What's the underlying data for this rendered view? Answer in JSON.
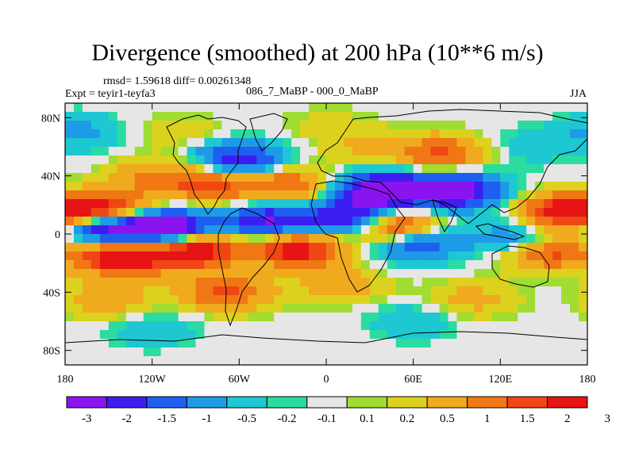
{
  "chart_data": {
    "type": "heatmap",
    "title": "Divergence (smoothed) at 200 hPa (10**6 m/s)",
    "stats": "rmsd= 1.59618 diff= 0.00261348",
    "experiment": "Expt = teyir1-teyfa3",
    "comparison": "086_7_MaBP - 000_0_MaBP",
    "season": "JJA",
    "x_ticks": [
      "180",
      "120W",
      "60W",
      "0",
      "60E",
      "120E",
      "180"
    ],
    "x_tick_values": [
      -180,
      -120,
      -60,
      0,
      60,
      120,
      180
    ],
    "y_ticks": [
      "80N",
      "40N",
      "0",
      "40S",
      "80S"
    ],
    "y_tick_values": [
      80,
      40,
      0,
      -40,
      -80
    ],
    "xlim": [
      -180,
      180
    ],
    "ylim": [
      -90,
      90
    ],
    "colorbar_labels": [
      "-3",
      "-2",
      "-1.5",
      "-1",
      "-0.5",
      "-0.2",
      "-0.1",
      "0.1",
      "0.2",
      "0.5",
      "1",
      "1.5",
      "2",
      "3"
    ],
    "colorbar_colors": [
      "#8a14f0",
      "#3c1ef0",
      "#1e5ff0",
      "#1e9be6",
      "#1ec8d2",
      "#2adca0",
      "#e6e6e6",
      "#a0dc32",
      "#dcd21e",
      "#f0aa1e",
      "#f07814",
      "#f04614",
      "#e61414"
    ],
    "levels": [
      -3,
      -2,
      -1.5,
      -1,
      -0.5,
      -0.2,
      -0.1,
      0.1,
      0.2,
      0.5,
      1,
      1.5,
      2,
      3
    ],
    "field_features": [
      {
        "lon": -150,
        "lat": 5,
        "value": -3.5
      },
      {
        "lon": -110,
        "lat": 4,
        "value": -3.2
      },
      {
        "lon": -40,
        "lat": 8,
        "value": -2.2
      },
      {
        "lon": 20,
        "lat": 10,
        "value": -2.6
      },
      {
        "lon": 40,
        "lat": 30,
        "value": -2.8
      },
      {
        "lon": 90,
        "lat": 30,
        "value": -2.5
      },
      {
        "lon": -60,
        "lat": 50,
        "value": -2.2
      },
      {
        "lon": 140,
        "lat": -5,
        "value": -2.4
      },
      {
        "lon": 60,
        "lat": -5,
        "value": -2.0
      },
      {
        "lon": -150,
        "lat": 15,
        "value": 3.2
      },
      {
        "lon": -140,
        "lat": -15,
        "value": 3.0
      },
      {
        "lon": -90,
        "lat": -10,
        "value": 2.8
      },
      {
        "lon": -20,
        "lat": -10,
        "value": 2.5
      },
      {
        "lon": 45,
        "lat": 5,
        "value": 3.2
      },
      {
        "lon": 165,
        "lat": 15,
        "value": 2.6
      },
      {
        "lon": 150,
        "lat": -10,
        "value": 3.0
      },
      {
        "lon": -80,
        "lat": 35,
        "value": 1.8
      },
      {
        "lon": -30,
        "lat": 35,
        "value": 1.6
      },
      {
        "lon": 80,
        "lat": 55,
        "value": 1.6
      },
      {
        "lon": 30,
        "lat": 60,
        "value": 0.6
      },
      {
        "lon": -120,
        "lat": 40,
        "value": 0.9
      },
      {
        "lon": -70,
        "lat": -40,
        "value": 1.6
      },
      {
        "lon": 10,
        "lat": -35,
        "value": 0.8
      },
      {
        "lon": 100,
        "lat": -45,
        "value": 0.7
      },
      {
        "lon": -150,
        "lat": -45,
        "value": 0.9
      },
      {
        "lon": -120,
        "lat": -65,
        "value": -0.5
      },
      {
        "lon": 60,
        "lat": -60,
        "value": -0.5
      },
      {
        "lon": -170,
        "lat": 70,
        "value": -0.6
      },
      {
        "lon": 140,
        "lat": 60,
        "value": -0.4
      },
      {
        "lon": 0,
        "lat": 75,
        "value": 0.3
      },
      {
        "lon": -100,
        "lat": 70,
        "value": 0.4
      }
    ]
  }
}
